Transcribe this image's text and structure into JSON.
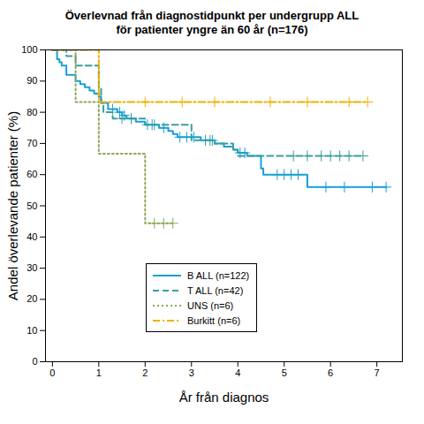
{
  "chart_data": {
    "type": "survival",
    "title": "Överlevnad från diagnostidpunkt per undergrupp ALL",
    "subtitle": "för patienter yngre än 60 år (n=176)",
    "x_label": "År från diagnos",
    "y_label": "Andel överlevande patienter (%)",
    "xlim": [
      -0.15,
      7.55
    ],
    "xticks": [
      0,
      1,
      2,
      3,
      4,
      5,
      6,
      7
    ],
    "ylim": [
      0,
      100
    ],
    "yticks": [
      0,
      10,
      20,
      30,
      40,
      50,
      60,
      70,
      80,
      90,
      100
    ],
    "grid": false,
    "legend": "bottom",
    "series": [
      {
        "name": "B ALL (n=122)",
        "color": "#1a9fd6",
        "line_style": "solid",
        "x": [
          0,
          0.1,
          0.15,
          0.2,
          0.3,
          0.5,
          0.6,
          0.7,
          0.8,
          0.9,
          1.0,
          1.05,
          1.2,
          1.4,
          1.5,
          1.6,
          1.8,
          2.0,
          2.3,
          2.5,
          2.6,
          2.7,
          3.2,
          3.5,
          3.7,
          3.9,
          4.0,
          4.2,
          4.5,
          4.55,
          5.5,
          7.2
        ],
        "values": [
          100,
          97,
          96,
          95,
          92,
          90,
          89,
          88,
          87,
          86,
          85,
          83,
          81,
          80,
          79,
          78,
          77,
          76,
          75,
          74,
          73,
          72,
          71,
          70,
          69,
          68,
          67,
          66,
          62,
          60,
          56,
          56
        ],
        "censor_x": [
          1.3,
          1.45,
          1.55,
          1.7,
          2.05,
          2.15,
          2.4,
          2.75,
          2.9,
          3.05,
          3.3,
          3.45,
          4.05,
          4.15,
          4.85,
          5.0,
          5.15,
          5.3,
          5.9,
          6.3,
          6.9,
          7.2
        ],
        "censor_values": [
          81,
          80,
          79,
          78,
          76,
          76,
          75,
          72,
          72,
          72,
          71,
          71,
          67,
          67,
          60,
          60,
          60,
          60,
          56,
          56,
          56,
          56
        ]
      },
      {
        "name": "T ALL (n=42)",
        "color": "#3a9ea0",
        "line_style": "dashed",
        "x": [
          0,
          0.3,
          0.5,
          1.0,
          1.05,
          1.1,
          1.3,
          2.0,
          3.0,
          3.5,
          3.9,
          4.0,
          6.7
        ],
        "values": [
          100,
          98,
          95,
          88,
          83,
          80,
          78,
          76,
          71,
          70,
          68,
          66,
          66
        ],
        "censor_x": [
          1.5,
          1.7,
          2.2,
          3.4,
          5.2,
          5.5,
          5.8,
          6.0,
          6.2,
          6.4,
          6.7
        ],
        "censor_values": [
          78,
          78,
          76,
          71,
          66,
          66,
          66,
          66,
          66,
          66,
          66
        ]
      },
      {
        "name": "UNS (n=6)",
        "color": "#8fa85a",
        "line_style": "dotted",
        "x": [
          0,
          0.5,
          1.0,
          2.0,
          2.6
        ],
        "values": [
          100,
          83.3,
          66.7,
          44.4,
          44.4
        ],
        "censor_x": [
          2.2,
          2.4,
          2.6
        ],
        "censor_values": [
          44.4,
          44.4,
          44.4
        ]
      },
      {
        "name": "Burkitt (n=6)",
        "color": "#f0b000",
        "line_style": "dashdot",
        "x": [
          0,
          1.0,
          6.8
        ],
        "values": [
          100,
          83.3,
          83.3
        ],
        "censor_x": [
          2.0,
          2.8,
          3.5,
          4.7,
          5.5,
          6.4,
          6.8
        ],
        "censor_values": [
          83.3,
          83.3,
          83.3,
          83.3,
          83.3,
          83.3,
          83.3
        ]
      }
    ]
  }
}
